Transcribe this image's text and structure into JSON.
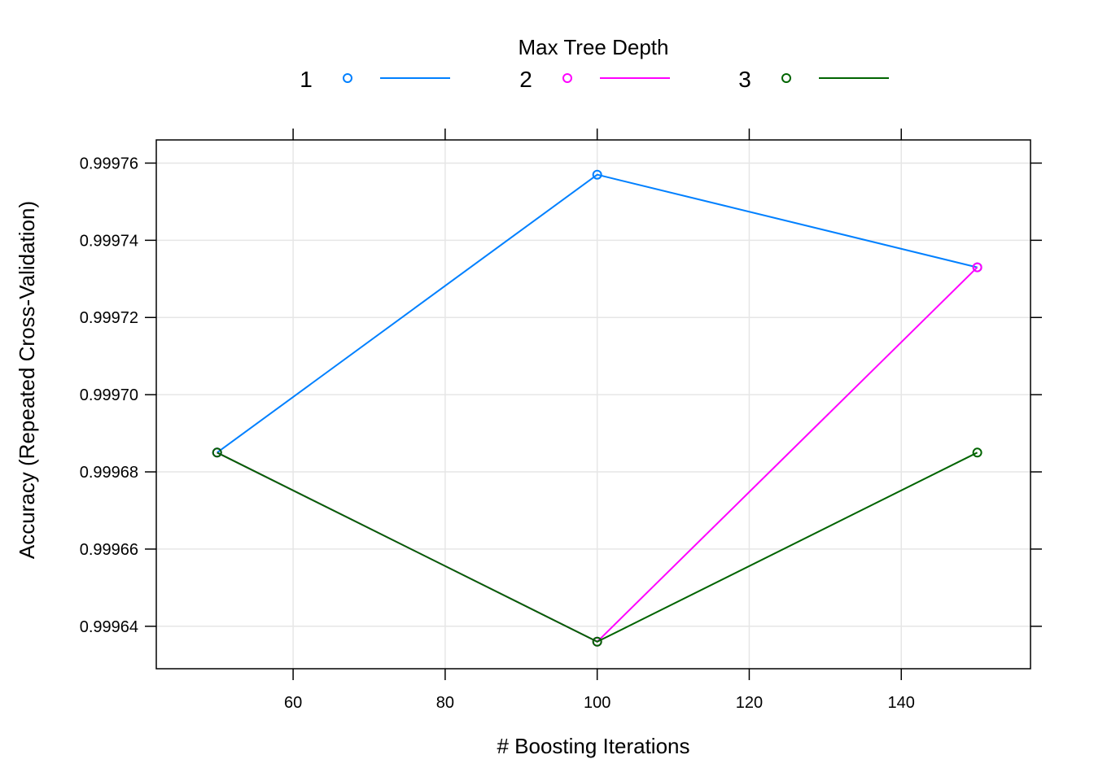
{
  "chart_data": {
    "type": "line",
    "title": "",
    "xlabel": "# Boosting Iterations",
    "ylabel": "Accuracy (Repeated Cross-Validation)",
    "xlim": [
      42,
      157
    ],
    "ylim": [
      0.999629,
      0.999766
    ],
    "xticks": [
      60,
      80,
      100,
      120,
      140
    ],
    "yticks": [
      0.99964,
      0.99966,
      0.99968,
      0.9997,
      0.99972,
      0.99974,
      0.99976
    ],
    "ytick_labels": [
      "0.99964",
      "0.99966",
      "0.99968",
      "0.99970",
      "0.99972",
      "0.99974",
      "0.99976"
    ],
    "grid": true,
    "legend": {
      "title": "Max Tree Depth",
      "position": "top"
    },
    "series": [
      {
        "name": "1",
        "color": "#0080ff",
        "x": [
          50,
          100,
          150
        ],
        "y": [
          0.999685,
          0.999757,
          0.999733
        ]
      },
      {
        "name": "2",
        "color": "#ff00ff",
        "x": [
          50,
          100,
          150
        ],
        "y": [
          0.999685,
          0.999636,
          0.999733
        ]
      },
      {
        "name": "3",
        "color": "#006400",
        "x": [
          50,
          100,
          150
        ],
        "y": [
          0.999685,
          0.999636,
          0.999685
        ]
      }
    ]
  }
}
